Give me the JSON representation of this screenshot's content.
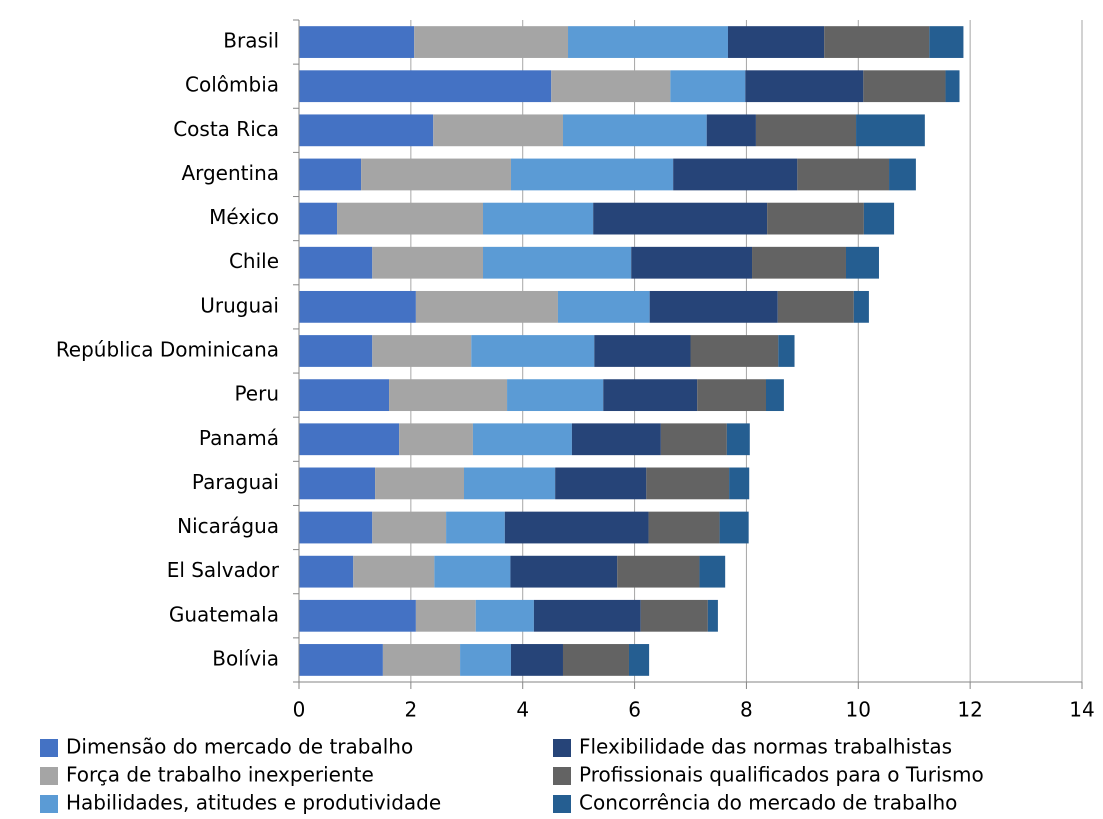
{
  "chart_data": {
    "type": "stacked_barh",
    "categories": [
      "Brasil",
      "Colômbia",
      "Costa Rica",
      "Argentina",
      "México",
      "Chile",
      "Uruguai",
      "República Dominicana",
      "Peru",
      "Panamá",
      "Paraguai",
      "Nicarágua",
      "El Salvador",
      "Guatemala",
      "Bolívia"
    ],
    "series": [
      {
        "name": "Dimensão do mercado de trabalho",
        "color": "#4472c4",
        "values": [
          2.06,
          4.51,
          2.4,
          1.11,
          0.68,
          1.31,
          2.09,
          1.31,
          1.61,
          1.79,
          1.36,
          1.31,
          0.97,
          2.09,
          1.5
        ]
      },
      {
        "name": "Força de trabalho inexperiente",
        "color": "#a5a5a5",
        "values": [
          2.75,
          2.13,
          2.32,
          2.68,
          2.61,
          1.98,
          2.54,
          1.77,
          2.11,
          1.32,
          1.59,
          1.32,
          1.45,
          1.07,
          1.38
        ]
      },
      {
        "name": "Habilidades, atitudes e produtividade",
        "color": "#5b9bd5",
        "values": [
          2.86,
          1.34,
          2.57,
          2.9,
          1.97,
          2.65,
          1.64,
          2.2,
          1.72,
          1.77,
          1.63,
          1.05,
          1.36,
          1.04,
          0.91
        ]
      },
      {
        "name": "Flexibilidade das normas trabalhistas",
        "color": "#264478",
        "values": [
          1.72,
          2.11,
          0.88,
          2.22,
          3.11,
          2.16,
          2.29,
          1.72,
          1.68,
          1.59,
          1.63,
          2.57,
          1.91,
          1.91,
          0.93
        ]
      },
      {
        "name": "Profissionais qualificados para o Turismo",
        "color": "#636363",
        "values": [
          1.88,
          1.47,
          1.79,
          1.64,
          1.73,
          1.68,
          1.36,
          1.57,
          1.23,
          1.18,
          1.48,
          1.27,
          1.47,
          1.2,
          1.18
        ]
      },
      {
        "name": "Concorrência do mercado de trabalho",
        "color": "#255e91",
        "values": [
          0.61,
          0.25,
          1.23,
          0.48,
          0.54,
          0.59,
          0.27,
          0.29,
          0.32,
          0.41,
          0.36,
          0.52,
          0.46,
          0.18,
          0.36
        ]
      }
    ],
    "xlim": [
      0,
      14
    ],
    "xticks": [
      0,
      2,
      4,
      6,
      8,
      10,
      12,
      14
    ],
    "grid": true
  }
}
